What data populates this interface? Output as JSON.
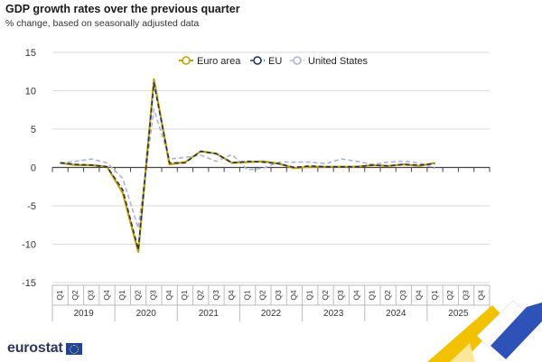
{
  "header": {
    "title": "GDP growth rates over the previous quarter",
    "subtitle": "% change, based on seasonally adjusted data"
  },
  "logo": {
    "text": "eurostat"
  },
  "colors": {
    "euro_area": "#c8a000",
    "eu": "#1e3060",
    "united_states": "#a9b3da",
    "grid": "#dadada",
    "axis": "#444444"
  },
  "chart_data": {
    "type": "line",
    "title": "GDP growth rates over the previous quarter",
    "subtitle": "% change, based on seasonally adjusted data",
    "ylim": [
      -15,
      15
    ],
    "yticks": [
      15,
      10,
      5,
      0,
      -5,
      -10,
      -15
    ],
    "grid": true,
    "legend_position": "top-center",
    "quarter_labels": [
      "Q1",
      "Q2",
      "Q3",
      "Q4",
      "Q1",
      "Q2",
      "Q3",
      "Q4",
      "Q1",
      "Q2",
      "Q3",
      "Q4",
      "Q1",
      "Q2",
      "Q3",
      "Q4",
      "Q1",
      "Q2",
      "Q3",
      "Q4",
      "Q1",
      "Q2",
      "Q3",
      "Q4",
      "Q1",
      "Q2",
      "Q3",
      "Q4"
    ],
    "years": [
      "2019",
      "2020",
      "2021",
      "2022",
      "2023",
      "2024",
      "2025"
    ],
    "series": [
      {
        "name": "Euro area",
        "values": [
          0.6,
          0.3,
          0.3,
          0.1,
          -3.3,
          -11.0,
          11.5,
          0.4,
          0.7,
          2.1,
          1.8,
          0.6,
          0.7,
          0.8,
          0.5,
          -0.1,
          0.1,
          0.1,
          0.1,
          0.1,
          0.3,
          0.2,
          0.4,
          0.2,
          0.6,
          null,
          null,
          null
        ]
      },
      {
        "name": "EU",
        "values": [
          0.6,
          0.4,
          0.3,
          0.1,
          -2.9,
          -10.7,
          11.0,
          0.6,
          0.6,
          2.1,
          1.8,
          0.6,
          0.8,
          0.7,
          0.5,
          0.0,
          0.2,
          0.1,
          0.1,
          0.1,
          0.3,
          0.2,
          0.4,
          0.3,
          0.5,
          null,
          null,
          null
        ]
      },
      {
        "name": "United States",
        "values": [
          0.6,
          0.8,
          1.1,
          0.6,
          -1.4,
          -7.9,
          7.6,
          1.1,
          1.3,
          1.6,
          0.8,
          1.7,
          -0.3,
          -0.1,
          0.7,
          0.7,
          0.7,
          0.5,
          1.1,
          0.8,
          0.4,
          0.7,
          0.8,
          0.6,
          -0.1,
          null,
          null,
          null
        ]
      }
    ]
  }
}
